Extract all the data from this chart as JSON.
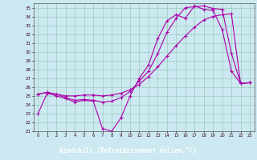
{
  "xlabel": "Windchill (Refroidissement éolien,°C)",
  "bg_color": "#cce8f0",
  "plot_bg": "#cce8f0",
  "line_color": "#aa00aa",
  "grid_color": "#99ccbb",
  "xlabel_bg": "#440055",
  "xlabel_fg": "#ffffff",
  "xlim": [
    -0.5,
    23.5
  ],
  "ylim": [
    21,
    35.5
  ],
  "xticks": [
    0,
    1,
    2,
    3,
    4,
    5,
    6,
    7,
    8,
    9,
    10,
    11,
    12,
    13,
    14,
    15,
    16,
    17,
    18,
    19,
    20,
    21,
    22,
    23
  ],
  "yticks": [
    21,
    22,
    23,
    24,
    25,
    26,
    27,
    28,
    29,
    30,
    31,
    32,
    33,
    34,
    35
  ],
  "line1_x": [
    0,
    1,
    2,
    3,
    4,
    5,
    6,
    7,
    8,
    9,
    10,
    11,
    12,
    13,
    14,
    15,
    16,
    17,
    18,
    19,
    20,
    21,
    22,
    23
  ],
  "line1_y": [
    23.0,
    25.3,
    25.0,
    24.7,
    24.3,
    24.5,
    24.4,
    21.3,
    21.0,
    22.5,
    25.0,
    27.0,
    28.5,
    31.5,
    33.5,
    34.2,
    33.8,
    35.2,
    34.8,
    34.7,
    32.5,
    27.8,
    26.4,
    26.5
  ],
  "line2_x": [
    0,
    1,
    2,
    3,
    4,
    5,
    6,
    7,
    8,
    9,
    10,
    11,
    12,
    13,
    14,
    15,
    16,
    17,
    18,
    19,
    20,
    21,
    22,
    23
  ],
  "line2_y": [
    25.2,
    25.4,
    25.2,
    25.0,
    25.0,
    25.1,
    25.1,
    25.0,
    25.1,
    25.3,
    25.7,
    26.3,
    27.2,
    28.3,
    29.5,
    30.7,
    31.8,
    32.8,
    33.6,
    34.0,
    34.2,
    34.3,
    26.4,
    26.5
  ],
  "line3_x": [
    0,
    1,
    2,
    3,
    4,
    5,
    6,
    7,
    8,
    9,
    10,
    11,
    12,
    13,
    14,
    15,
    16,
    17,
    18,
    19,
    20,
    21,
    22,
    23
  ],
  "line3_y": [
    25.2,
    25.4,
    25.2,
    24.8,
    24.5,
    24.6,
    24.5,
    24.3,
    24.4,
    24.8,
    25.5,
    26.7,
    27.8,
    29.8,
    32.2,
    33.8,
    35.0,
    35.1,
    35.2,
    34.9,
    34.8,
    29.8,
    26.4,
    26.5
  ]
}
